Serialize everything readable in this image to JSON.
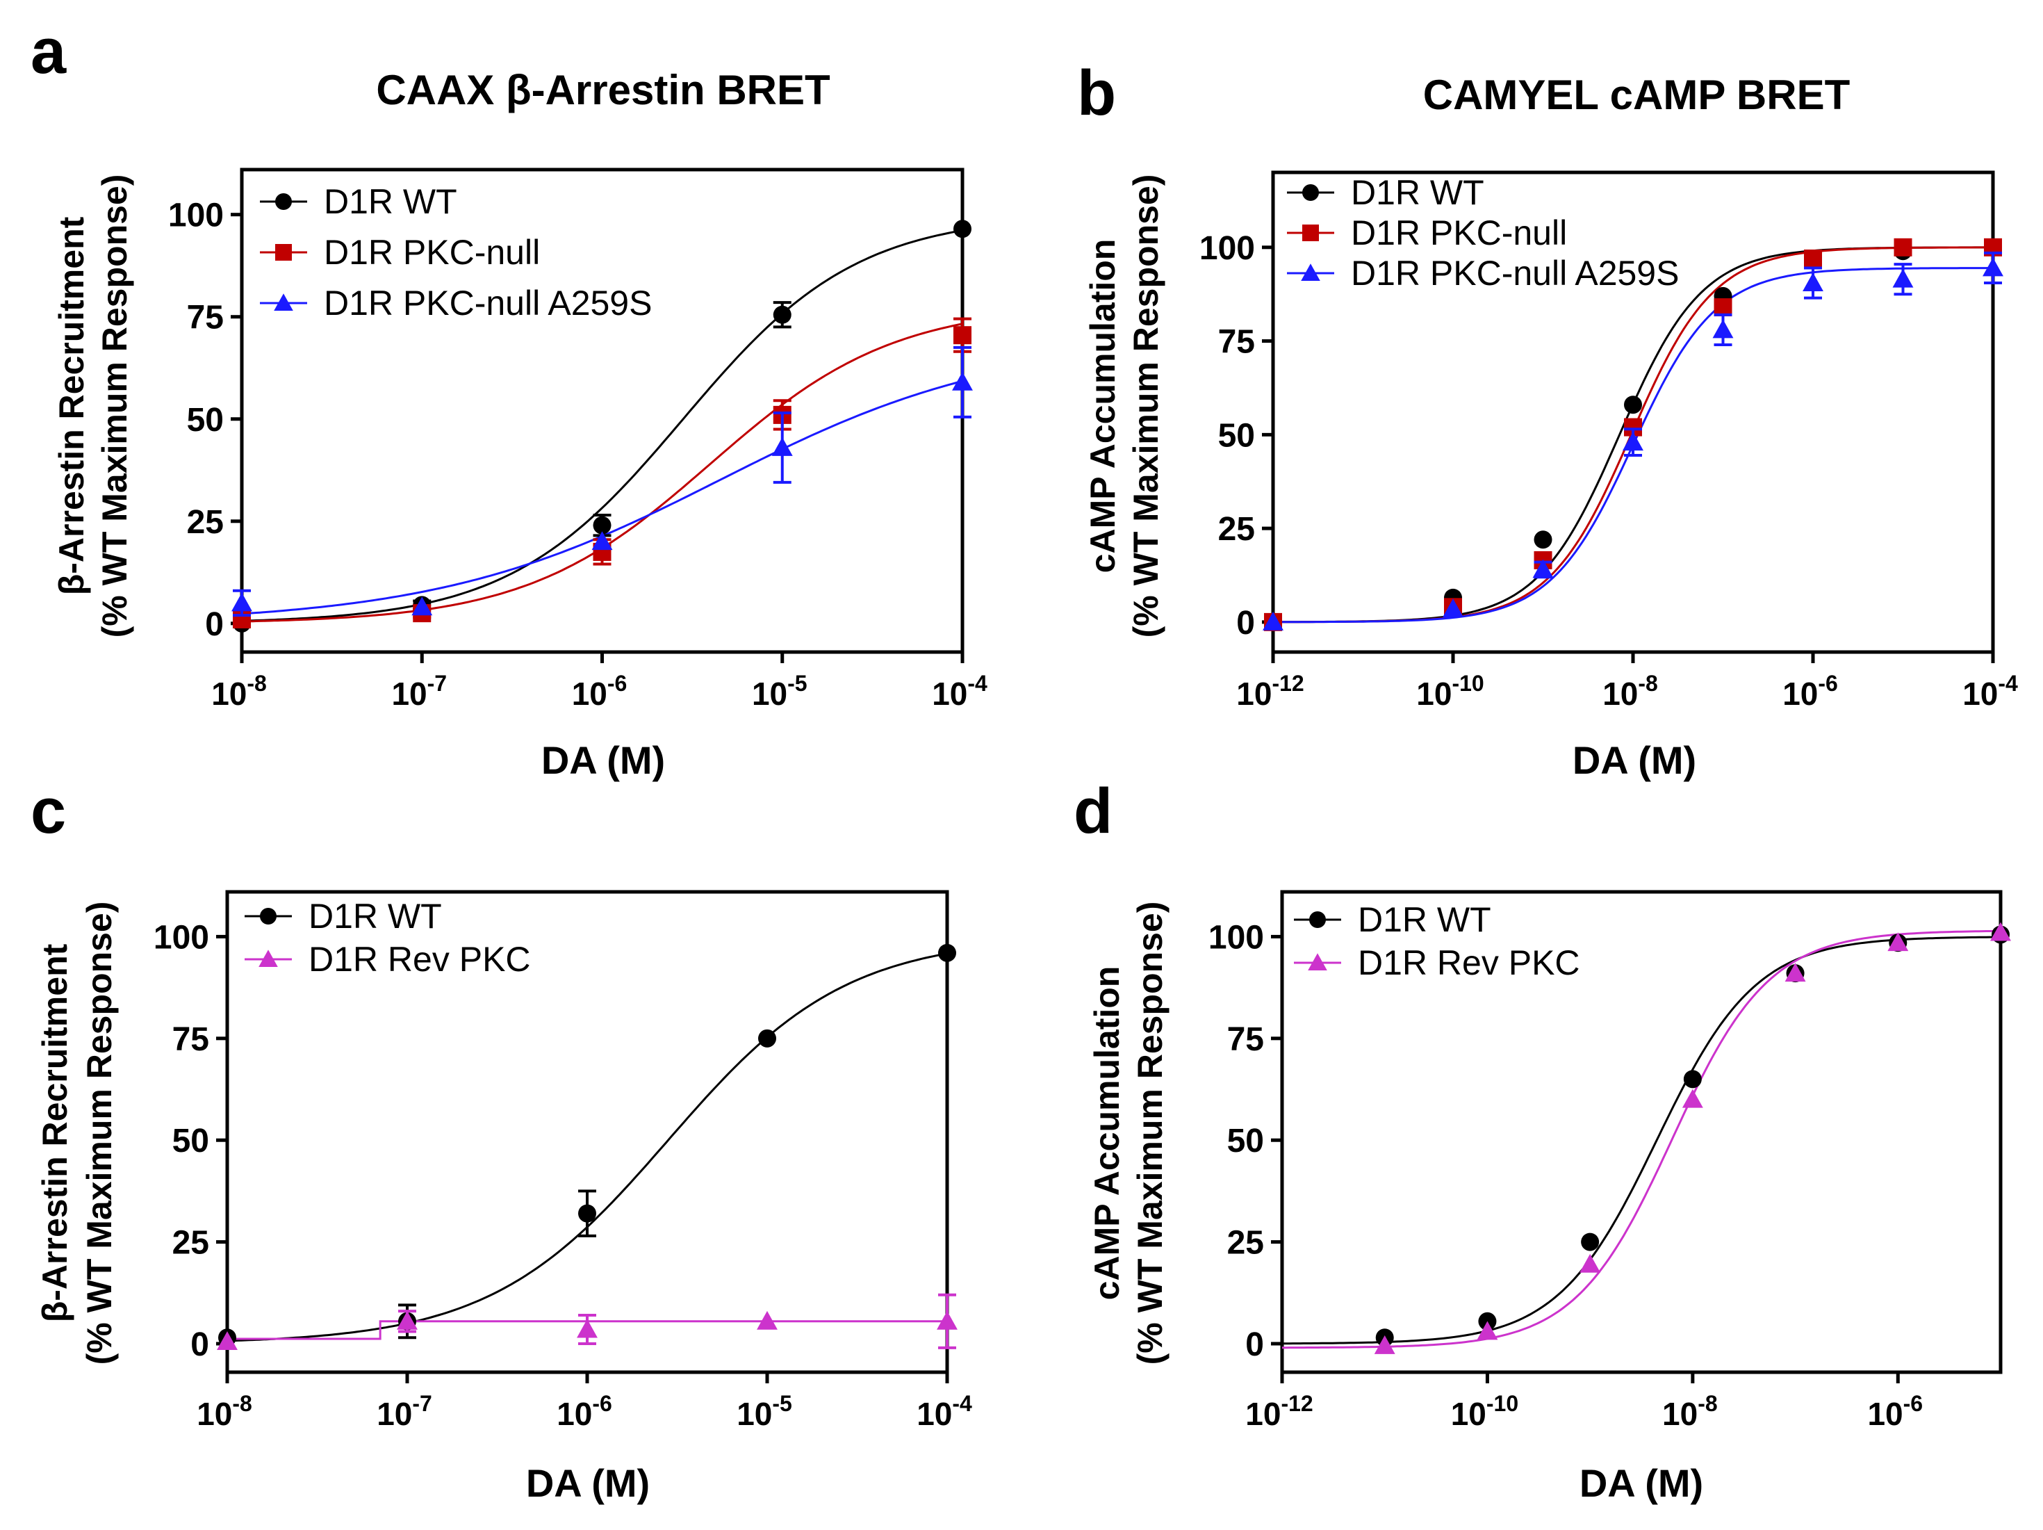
{
  "panels": [
    {
      "letter": "a",
      "chart_data": {
        "type": "line",
        "title": "CAAX β-Arrestin BRET",
        "xlabel": "DA (M)",
        "ylabel_line1": "β-Arrestin Recruitment",
        "ylabel_line2": "(% WT Maximum Response)",
        "x_scale": "log10",
        "xlim_log": [
          -8,
          -4
        ],
        "ylim": [
          -7,
          111
        ],
        "x_ticks": [
          {
            "base": "10",
            "exp": "-8"
          },
          {
            "base": "10",
            "exp": "-7"
          },
          {
            "base": "10",
            "exp": "-6"
          },
          {
            "base": "10",
            "exp": "-5"
          },
          {
            "base": "10",
            "exp": "-4"
          }
        ],
        "x_tick_logs": [
          -8,
          -7,
          -6,
          -5,
          -4
        ],
        "y_ticks": [
          "0",
          "25",
          "50",
          "75",
          "100"
        ],
        "y_tick_values": [
          0,
          25,
          50,
          75,
          100
        ],
        "legend_position": "top-left",
        "series": [
          {
            "name": "D1R WT",
            "color": "#000000",
            "marker": "circle",
            "x_log": [
              -8,
              -7,
              -6,
              -5,
              -4
            ],
            "values": [
              0,
              4.5,
              24,
              75.5,
              96.5
            ],
            "errors": [
              0,
              1,
              2.5,
              3,
              0
            ],
            "fit": {
              "bottom": 0,
              "top": 100,
              "logec50": -5.55,
              "hill": 0.9
            }
          },
          {
            "name": "D1R PKC-null",
            "color": "#c00000",
            "marker": "square",
            "x_log": [
              -8,
              -7,
              -6,
              -5,
              -4
            ],
            "values": [
              1,
              2.5,
              17.5,
              51,
              70.5
            ],
            "errors": [
              0,
              1,
              3,
              3.5,
              4
            ],
            "fit": {
              "bottom": 0,
              "top": 78,
              "logec50": -5.4,
              "hill": 0.85
            }
          },
          {
            "name": "D1R PKC-null A259S",
            "color": "#1a1aff",
            "marker": "triangle",
            "x_log": [
              -8,
              -7,
              -6,
              -5,
              -4
            ],
            "values": [
              5,
              4,
              20,
              43,
              59
            ],
            "errors": [
              3,
              0,
              0,
              8.5,
              8.5
            ],
            "fit": {
              "bottom": 0,
              "top": 70,
              "logec50": -5.35,
              "hill": 0.55
            }
          }
        ]
      }
    },
    {
      "letter": "b",
      "chart_data": {
        "type": "line",
        "title": "CAMYEL cAMP BRET",
        "xlabel": "DA (M)",
        "ylabel_line1": "cAMP Accumulation",
        "ylabel_line2": "(% WT Maximum Response)",
        "x_scale": "log10",
        "xlim_log": [
          -12,
          -4
        ],
        "ylim": [
          -8,
          120
        ],
        "x_ticks": [
          {
            "base": "10",
            "exp": "-12"
          },
          {
            "base": "10",
            "exp": "-10"
          },
          {
            "base": "10",
            "exp": "-8"
          },
          {
            "base": "10",
            "exp": "-6"
          },
          {
            "base": "10",
            "exp": "-4"
          }
        ],
        "x_tick_logs": [
          -12,
          -10,
          -8,
          -6,
          -4
        ],
        "y_ticks": [
          "0",
          "25",
          "50",
          "75",
          "100"
        ],
        "y_tick_values": [
          0,
          25,
          50,
          75,
          100
        ],
        "legend_position": "top-left",
        "series": [
          {
            "name": "D1R WT",
            "color": "#000000",
            "marker": "circle",
            "x_log": [
              -12,
              -10,
              -9,
              -8,
              -7,
              -6,
              -5,
              -4
            ],
            "values": [
              0,
              6.5,
              22,
              58,
              87,
              96.5,
              99,
              100
            ],
            "errors": [
              0,
              0,
              0,
              0,
              0,
              2,
              0,
              0
            ],
            "fit": {
              "bottom": 0,
              "top": 100,
              "logec50": -8.15,
              "hill": 0.95
            }
          },
          {
            "name": "D1R PKC-null",
            "color": "#c00000",
            "marker": "square",
            "x_log": [
              -12,
              -10,
              -9,
              -8,
              -7,
              -6,
              -5,
              -4
            ],
            "values": [
              0,
              4,
              16.5,
              52,
              84,
              97,
              100,
              100
            ],
            "errors": [
              0,
              0,
              0,
              0,
              0,
              0,
              0,
              0
            ],
            "fit": {
              "bottom": 0,
              "top": 100,
              "logec50": -8.02,
              "hill": 0.95
            }
          },
          {
            "name": "D1R PKC-null A259S",
            "color": "#1a1aff",
            "marker": "triangle",
            "x_log": [
              -12,
              -10,
              -9,
              -8,
              -7,
              -6,
              -5,
              -4
            ],
            "values": [
              0,
              3.5,
              14,
              48,
              78,
              90.5,
              91.5,
              94.5
            ],
            "errors": [
              0,
              0,
              2,
              3.5,
              4,
              4,
              4,
              4
            ],
            "fit": {
              "bottom": 0,
              "top": 94.5,
              "logec50": -8.0,
              "hill": 0.95
            }
          }
        ]
      }
    },
    {
      "letter": "c",
      "chart_data": {
        "type": "line",
        "title": "",
        "xlabel": "DA (M)",
        "ylabel_line1": "β-Arrestin Recruitment",
        "ylabel_line2": "(% WT Maximum Response)",
        "x_scale": "log10",
        "xlim_log": [
          -8,
          -4
        ],
        "ylim": [
          -7,
          111
        ],
        "x_ticks": [
          {
            "base": "10",
            "exp": "-8"
          },
          {
            "base": "10",
            "exp": "-7"
          },
          {
            "base": "10",
            "exp": "-6"
          },
          {
            "base": "10",
            "exp": "-5"
          },
          {
            "base": "10",
            "exp": "-4"
          }
        ],
        "x_tick_logs": [
          -8,
          -7,
          -6,
          -5,
          -4
        ],
        "y_ticks": [
          "0",
          "25",
          "50",
          "75",
          "100"
        ],
        "y_tick_values": [
          0,
          25,
          50,
          75,
          100
        ],
        "legend_position": "top-left",
        "series": [
          {
            "name": "D1R WT",
            "color": "#000000",
            "marker": "circle",
            "x_log": [
              -8,
              -7,
              -6,
              -5,
              -4
            ],
            "values": [
              1.5,
              5.5,
              32,
              75,
              96
            ],
            "errors": [
              0,
              4,
              5.5,
              0,
              0
            ],
            "fit": {
              "bottom": 0,
              "top": 100,
              "logec50": -5.55,
              "hill": 0.88
            }
          },
          {
            "name": "D1R Rev PKC",
            "color": "#cc33cc",
            "marker": "triangle",
            "x_log": [
              -8,
              -7,
              -6,
              -5,
              -4
            ],
            "values": [
              0.5,
              5.5,
              3.5,
              5.5,
              5.5
            ],
            "errors": [
              0,
              2.5,
              3.5,
              0,
              6.5
            ],
            "fit_step": {
              "low": 1.2,
              "high": 5.5,
              "step_at_log": -7.15
            }
          }
        ]
      }
    },
    {
      "letter": "d",
      "chart_data": {
        "type": "line",
        "title": "",
        "xlabel": "DA (M)",
        "ylabel_line1": "cAMP Accumulation",
        "ylabel_line2": "(% WT Maximum Response)",
        "x_scale": "log10",
        "xlim_log": [
          -12,
          -5
        ],
        "ylim": [
          -7,
          111
        ],
        "x_ticks": [
          {
            "base": "10",
            "exp": "-12"
          },
          {
            "base": "10",
            "exp": "-10"
          },
          {
            "base": "10",
            "exp": "-8"
          },
          {
            "base": "10",
            "exp": "-6"
          }
        ],
        "x_tick_logs": [
          -12,
          -10,
          -8,
          -6
        ],
        "y_ticks": [
          "0",
          "25",
          "50",
          "75",
          "100"
        ],
        "y_tick_values": [
          0,
          25,
          50,
          75,
          100
        ],
        "legend_position": "top-left",
        "series": [
          {
            "name": "D1R WT",
            "color": "#000000",
            "marker": "circle",
            "x_log": [
              -11,
              -10,
              -9,
              -8,
              -7,
              -6,
              -5
            ],
            "values": [
              1.5,
              5.5,
              25,
              65,
              91,
              98.5,
              100.5
            ],
            "errors": [
              0,
              0,
              0,
              0,
              0,
              0,
              0
            ],
            "fit": {
              "bottom": 0,
              "top": 100,
              "logec50": -8.35,
              "hill": 0.9
            }
          },
          {
            "name": "D1R Rev PKC",
            "color": "#cc33cc",
            "marker": "triangle",
            "x_log": [
              -11,
              -10,
              -9,
              -8,
              -7,
              -6,
              -5
            ],
            "values": [
              -0.5,
              3,
              19.5,
              60,
              91,
              98.5,
              101
            ],
            "errors": [
              0,
              0,
              0,
              0,
              0,
              0,
              0
            ],
            "fit": {
              "bottom": -1,
              "top": 101.5,
              "logec50": -8.2,
              "hill": 0.92
            }
          }
        ]
      }
    }
  ]
}
